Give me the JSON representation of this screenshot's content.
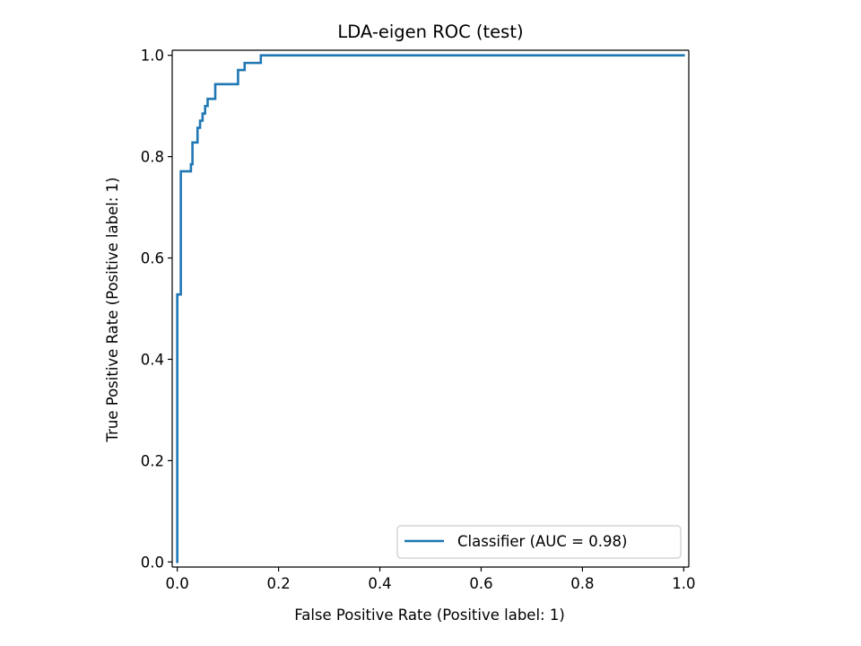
{
  "chart_data": {
    "type": "line",
    "title": "LDA-eigen ROC (test)",
    "xlabel": "False Positive Rate (Positive label: 1)",
    "ylabel": "True Positive Rate (Positive label: 1)",
    "xlim": [
      -0.01,
      1.01
    ],
    "ylim": [
      -0.01,
      1.01
    ],
    "xticks": [
      0.0,
      0.2,
      0.4,
      0.6,
      0.8,
      1.0
    ],
    "yticks": [
      0.0,
      0.2,
      0.4,
      0.6,
      0.8,
      1.0
    ],
    "xtick_labels": [
      "0.0",
      "0.2",
      "0.4",
      "0.6",
      "0.8",
      "1.0"
    ],
    "ytick_labels": [
      "0.0",
      "0.2",
      "0.4",
      "0.6",
      "0.8",
      "1.0"
    ],
    "grid": false,
    "legend_position": "lower-right",
    "series": [
      {
        "name": "Classifier (AUC = 0.98)",
        "color": "#1f77b4",
        "x": [
          0.0,
          0.0,
          0.0,
          0.0,
          0.007,
          0.007,
          0.007,
          0.027,
          0.027,
          0.03,
          0.03,
          0.04,
          0.04,
          0.045,
          0.045,
          0.05,
          0.05,
          0.055,
          0.055,
          0.06,
          0.06,
          0.065,
          0.065,
          0.075,
          0.075,
          0.12,
          0.12,
          0.133,
          0.133,
          0.165,
          0.165,
          1.0
        ],
        "y": [
          0.0,
          0.0,
          0.528,
          0.528,
          0.528,
          0.771,
          0.771,
          0.771,
          0.785,
          0.785,
          0.828,
          0.828,
          0.857,
          0.857,
          0.871,
          0.871,
          0.885,
          0.885,
          0.9,
          0.9,
          0.914,
          0.914,
          0.914,
          0.914,
          0.943,
          0.943,
          0.971,
          0.971,
          0.985,
          0.985,
          1.0,
          1.0
        ]
      }
    ]
  }
}
